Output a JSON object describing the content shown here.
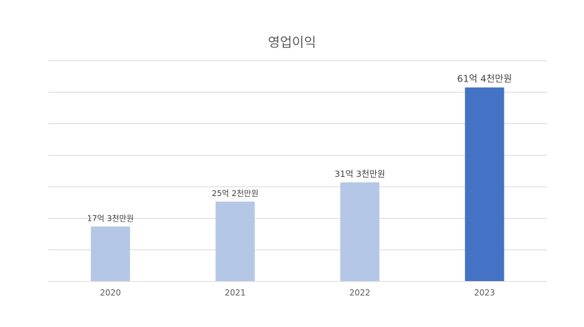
{
  "chart_data": {
    "type": "bar",
    "title": "영업이익",
    "categories": [
      "2020",
      "2021",
      "2022",
      "2023"
    ],
    "values": [
      17.3,
      25.2,
      31.3,
      61.4
    ],
    "data_labels": [
      "17억 3천만원",
      "25억 2천만원",
      "31억 3천만원",
      "61억 4천만원"
    ],
    "ylim": [
      0,
      70
    ],
    "yticks_shown": false,
    "grid": true,
    "legend": "none",
    "colors": [
      "#b4c7e7",
      "#b4c7e7",
      "#b4c7e7",
      "#4472c4"
    ],
    "gridline_color": "#d9d9d9",
    "axis_line_color": "#d9d9d9"
  }
}
